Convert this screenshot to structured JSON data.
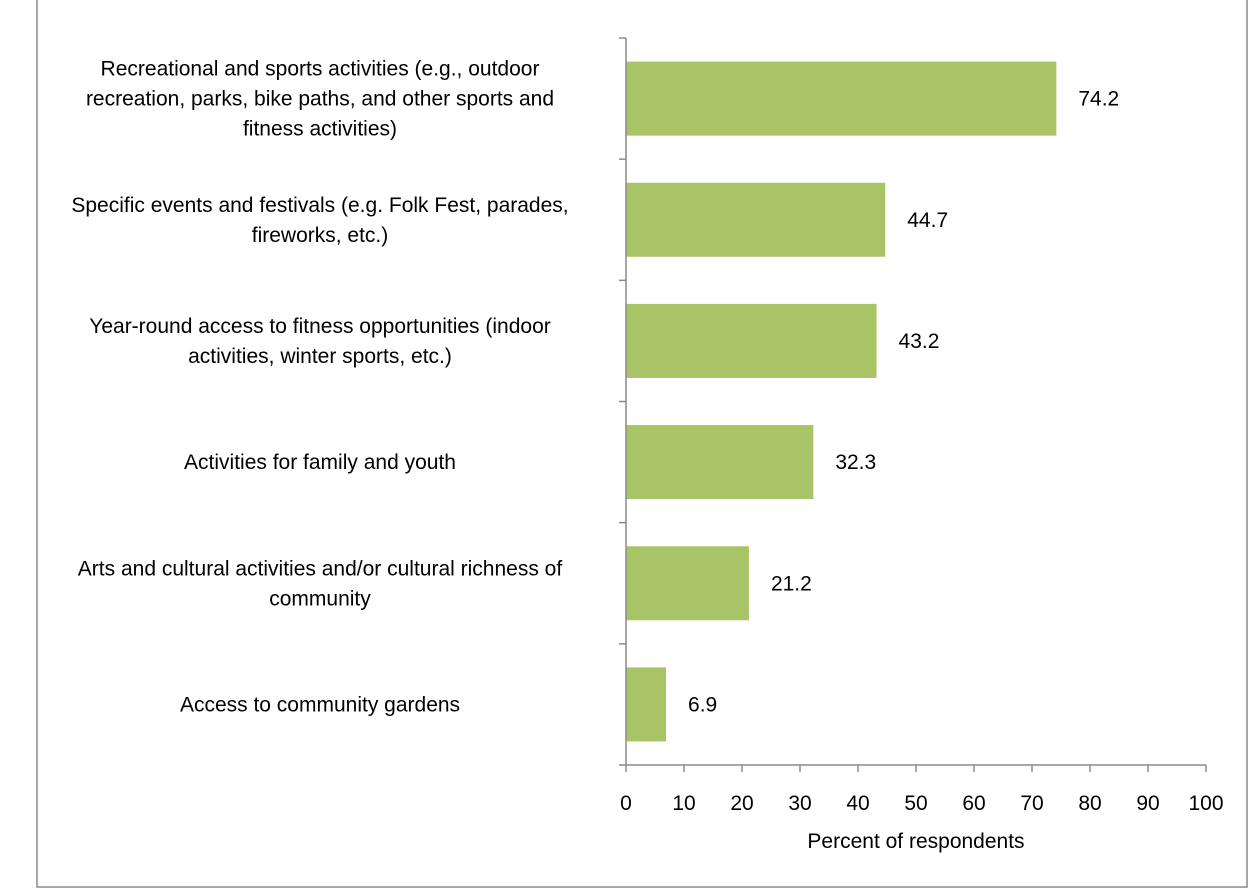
{
  "chart_data": {
    "type": "bar",
    "orientation": "horizontal",
    "title": "",
    "xlabel": "Percent of respondents",
    "ylabel": "",
    "xlim": [
      0,
      100
    ],
    "x_ticks": [
      "0",
      "10",
      "20",
      "30",
      "40",
      "50",
      "60",
      "70",
      "80",
      "90",
      "100"
    ],
    "grid": false,
    "legend": "none",
    "bar_color": "#a9c467",
    "categories": [
      [
        "Recreational and sports activities (e.g., outdoor",
        "recreation, parks, bike paths, and other sports and",
        "fitness activities)"
      ],
      [
        "Specific events and festivals (e.g. Folk Fest, parades,",
        "fireworks, etc.)"
      ],
      [
        "Year-round access to fitness opportunities (indoor",
        "activities, winter sports, etc.)"
      ],
      [
        "Activities for family and youth"
      ],
      [
        "Arts and cultural activities and/or cultural richness of",
        "community"
      ],
      [
        "Access to community gardens"
      ]
    ],
    "values": [
      74.2,
      44.7,
      43.2,
      32.3,
      21.2,
      6.9
    ],
    "data_labels": [
      "74.2",
      "44.7",
      "43.2",
      "32.3",
      "21.2",
      "6.9"
    ]
  }
}
